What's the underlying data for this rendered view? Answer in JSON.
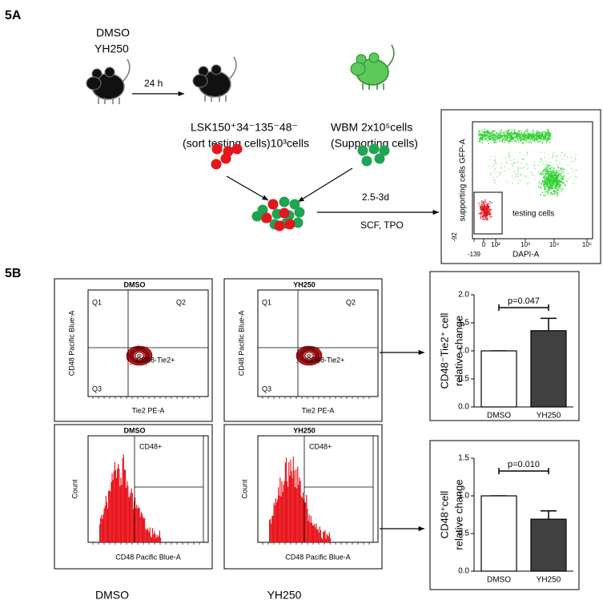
{
  "panel_a": {
    "label": "5A",
    "conditions": [
      "DMSO",
      "YH250"
    ],
    "time": "24 h",
    "testing_cells": [
      "LSK150⁺34⁻135⁻48⁻",
      "(sort testing cells)10³cells"
    ],
    "supporting_cells": [
      "WBM 2x10⁵cells",
      "(Supporting cells)"
    ],
    "culture_time": "2.5-3d",
    "culture_factors": "SCF, TPO",
    "flow": {
      "y_label": "supporting cells GFP-A",
      "x_label": "DAPI-A",
      "gate_label": "testing cells",
      "y_tick": "-92",
      "x_ticks": [
        "-139",
        "0",
        "10²",
        "10³",
        "10⁴",
        "10⁵"
      ]
    }
  },
  "panel_b": {
    "label": "5B",
    "scatter_plots": [
      {
        "title": "DMSO",
        "quadrants": [
          "Q1",
          "Q2",
          "Q3"
        ],
        "gate": "CD48-Tie2+",
        "y_label": "CD48 Pacific Blue-A",
        "x_label": "Tie2 PE-A"
      },
      {
        "title": "YH250",
        "quadrants": [
          "Q1",
          "Q2",
          "Q3"
        ],
        "gate": "CD48-Tie2+",
        "y_label": "CD48 Pacific Blue-A",
        "x_label": "Tie2 PE-A"
      }
    ],
    "histograms": [
      {
        "title": "DMSO",
        "gate": "CD48+",
        "y_label": "Count",
        "x_label": "CD48 Pacific Blue-A"
      },
      {
        "title": "YH250",
        "gate": "CD48+",
        "y_label": "Count",
        "x_label": "CD48 Pacific Blue-A"
      }
    ],
    "column_labels": [
      "DMSO",
      "YH250"
    ],
    "charts": [
      {
        "type": "bar",
        "y_label": [
          "CD48⁻Tie2⁺ cell",
          "relative change"
        ],
        "annotation": "p=0.047",
        "categories": [
          "DMSO",
          "YH250"
        ],
        "values": [
          1.0,
          1.36
        ],
        "errors": [
          0,
          0.22
        ],
        "colors": [
          "#ffffff",
          "#404040"
        ],
        "ylim": [
          0,
          2
        ],
        "yticks": [
          {
            "value": 0,
            "label": "0.0"
          },
          0.5,
          {
            "value": 1,
            "label": "1.0"
          },
          1.5,
          {
            "value": 2,
            "label": "2.0"
          }
        ]
      },
      {
        "type": "bar",
        "y_label": [
          "CD48⁺cell",
          "relative change"
        ],
        "annotation": "p=0.010",
        "categories": [
          "DMSO",
          "YH250"
        ],
        "values": [
          1.0,
          0.69
        ],
        "errors": [
          0,
          0.11
        ],
        "colors": [
          "#ffffff",
          "#404040"
        ],
        "ylim": [
          0,
          1.5
        ],
        "yticks": [
          {
            "value": 0,
            "label": "0.0"
          },
          0.5,
          {
            "value": 1,
            "label": "1.0"
          },
          1.5
        ]
      }
    ]
  }
}
